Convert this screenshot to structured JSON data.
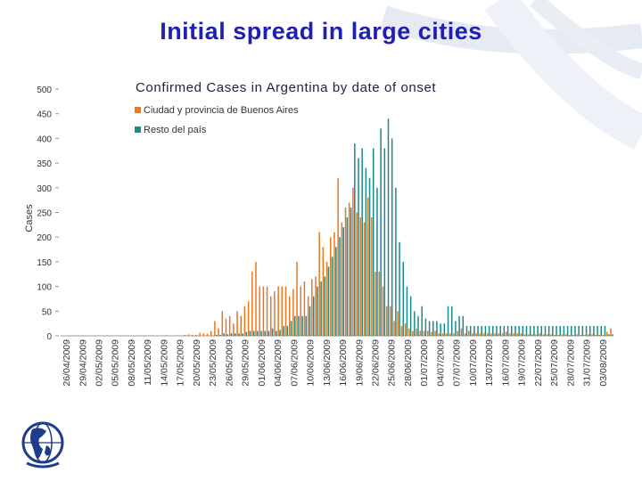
{
  "slide": {
    "title": "Initial spread in large cities"
  },
  "chart_data": {
    "type": "bar",
    "title": "Confirmed Cases in Argentina by date of onset",
    "ylabel": "Cases",
    "xlabel": "",
    "ylim": [
      0,
      500
    ],
    "yticks": [
      0,
      50,
      100,
      150,
      200,
      250,
      300,
      350,
      400,
      450,
      500
    ],
    "x_tick_labels": [
      "26/04/2009",
      "29/04/2009",
      "02/05/2009",
      "05/05/2009",
      "08/05/2009",
      "11/05/2009",
      "14/05/2009",
      "17/05/2009",
      "20/05/2009",
      "23/05/2009",
      "26/05/2009",
      "29/05/2009",
      "01/06/2009",
      "04/06/2009",
      "07/06/2009",
      "10/06/2009",
      "13/06/2009",
      "16/06/2009",
      "19/06/2009",
      "22/06/2009",
      "25/06/2009",
      "28/06/2009",
      "01/07/2009",
      "04/07/2009",
      "07/07/2009",
      "10/07/2009",
      "13/07/2009",
      "16/07/2009",
      "19/07/2009",
      "22/07/2009",
      "25/07/2009",
      "28/07/2009",
      "31/07/2009",
      "03/08/2009"
    ],
    "legend_position": "top-left",
    "grid": false,
    "series": [
      {
        "name": "Ciudad y provincia de Buenos Aires",
        "color": "#e87722",
        "values": [
          0,
          0,
          0,
          0,
          0,
          0,
          0,
          0,
          0,
          0,
          0,
          0,
          0,
          0,
          0,
          0,
          0,
          0,
          0,
          0,
          0,
          0,
          0,
          0,
          0,
          0,
          0,
          0,
          1,
          0,
          0,
          1,
          0,
          2,
          3,
          2,
          2,
          6,
          5,
          4,
          10,
          30,
          15,
          50,
          35,
          40,
          25,
          50,
          40,
          60,
          70,
          130,
          150,
          100,
          100,
          100,
          80,
          90,
          100,
          100,
          100,
          80,
          95,
          150,
          100,
          110,
          80,
          115,
          120,
          210,
          180,
          150,
          200,
          210,
          320,
          230,
          260,
          270,
          300,
          250,
          240,
          230,
          280,
          240,
          130,
          130,
          100,
          60,
          60,
          30,
          50,
          20,
          25,
          15,
          10,
          15,
          10,
          10,
          10,
          8,
          10,
          5,
          5,
          5,
          5,
          5,
          10,
          15,
          5,
          10,
          5,
          5,
          5,
          5,
          5,
          5,
          5,
          5,
          5,
          8,
          5,
          5,
          5,
          5,
          3,
          3,
          3,
          3,
          5,
          3,
          3,
          3,
          2,
          2,
          3,
          3,
          2,
          2,
          3,
          2,
          2,
          3,
          3,
          2,
          2,
          2,
          8,
          15
        ]
      },
      {
        "name": "Resto del país",
        "color": "#1a8a8a",
        "values": [
          0,
          0,
          0,
          0,
          0,
          0,
          0,
          0,
          0,
          0,
          0,
          0,
          0,
          0,
          0,
          0,
          0,
          0,
          0,
          0,
          0,
          0,
          0,
          0,
          0,
          0,
          0,
          0,
          0,
          0,
          0,
          0,
          0,
          0,
          0,
          0,
          0,
          0,
          0,
          0,
          0,
          2,
          2,
          5,
          3,
          5,
          5,
          5,
          5,
          8,
          10,
          10,
          10,
          10,
          10,
          10,
          15,
          10,
          12,
          20,
          20,
          30,
          40,
          40,
          40,
          40,
          60,
          80,
          100,
          110,
          120,
          140,
          160,
          180,
          200,
          220,
          240,
          260,
          390,
          360,
          380,
          340,
          320,
          380,
          300,
          420,
          380,
          440,
          400,
          300,
          190,
          150,
          100,
          80,
          50,
          40,
          60,
          35,
          30,
          30,
          30,
          25,
          25,
          60,
          60,
          30,
          40,
          40,
          20,
          20,
          20,
          20,
          20,
          20,
          20,
          20,
          20,
          20,
          20,
          20,
          20,
          20,
          20,
          20,
          20,
          20,
          20,
          20,
          20,
          20,
          20,
          20,
          20,
          20,
          20,
          20,
          20,
          20,
          20,
          20,
          20,
          20,
          20,
          20,
          20,
          20,
          3,
          3
        ]
      }
    ]
  }
}
